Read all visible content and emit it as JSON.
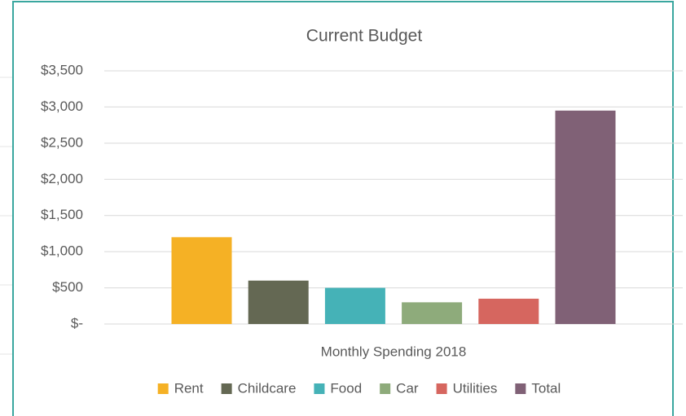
{
  "chart_data": {
    "type": "bar",
    "title": "Current Budget",
    "x_label": "Monthly Spending 2018",
    "categories": [
      "Monthly Spending 2018"
    ],
    "series": [
      {
        "name": "Rent",
        "color": "#f5b125",
        "values": [
          1200
        ]
      },
      {
        "name": "Childcare",
        "color": "#646853",
        "values": [
          600
        ]
      },
      {
        "name": "Food",
        "color": "#45b2b7",
        "values": [
          500
        ]
      },
      {
        "name": "Car",
        "color": "#8eab7b",
        "values": [
          300
        ]
      },
      {
        "name": "Utilities",
        "color": "#d6665f",
        "values": [
          350
        ]
      },
      {
        "name": "Total",
        "color": "#806176",
        "values": [
          2950
        ]
      }
    ],
    "ylim": [
      0,
      3500
    ],
    "yticks": [
      {
        "value": 0,
        "label": "$-"
      },
      {
        "value": 500,
        "label": "$500"
      },
      {
        "value": 1000,
        "label": "$1,000"
      },
      {
        "value": 1500,
        "label": "$1,500"
      },
      {
        "value": 2000,
        "label": "$2,000"
      },
      {
        "value": 2500,
        "label": "$2,500"
      },
      {
        "value": 3000,
        "label": "$3,000"
      },
      {
        "value": 3500,
        "label": "$3,500"
      }
    ],
    "grid": true,
    "legend": "bottom"
  }
}
